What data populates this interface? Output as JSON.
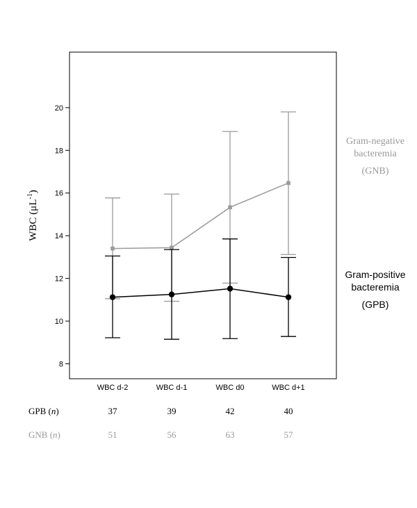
{
  "colors": {
    "gpb": "#000000",
    "gnb": "#9a9a9a"
  },
  "chart_data": {
    "type": "line",
    "ylabel": "WBC (μL",
    "ylabel_exp": "-1",
    "ylabel_close": ")",
    "ylim": [
      7.3,
      22.6
    ],
    "yticks": [
      8,
      10,
      12,
      14,
      16,
      18,
      20
    ],
    "grid": false,
    "categories": [
      "WBC d-2",
      "WBC d-1",
      "WBC d0",
      "WBC d+1"
    ],
    "series": [
      {
        "name": "Gram-positive bacteremia (GPB)",
        "legend_line1": "Gram-positive",
        "legend_line2": "bacteremia",
        "legend_line3": "(GPB)",
        "marker": "circle",
        "values": [
          11.12,
          11.25,
          11.52,
          11.12
        ],
        "lower": [
          9.22,
          9.15,
          9.18,
          9.28
        ],
        "upper": [
          13.05,
          13.35,
          13.85,
          12.98
        ]
      },
      {
        "name": "Gram-negative bacteremia (GNB)",
        "legend_line1": "Gram-negative",
        "legend_line2": "bacteremia",
        "legend_line3": "(GNB)",
        "marker": "square",
        "values": [
          13.4,
          13.44,
          15.33,
          16.47
        ],
        "lower": [
          11.05,
          10.93,
          11.78,
          13.12
        ],
        "upper": [
          15.77,
          15.95,
          18.88,
          19.8
        ]
      }
    ],
    "counts": {
      "gpb_label": "GPB (",
      "gnb_label": "GNB (",
      "n": "n",
      "close": ")",
      "gpb": [
        "37",
        "39",
        "42",
        "40"
      ],
      "gnb": [
        "51",
        "56",
        "63",
        "57"
      ]
    }
  }
}
